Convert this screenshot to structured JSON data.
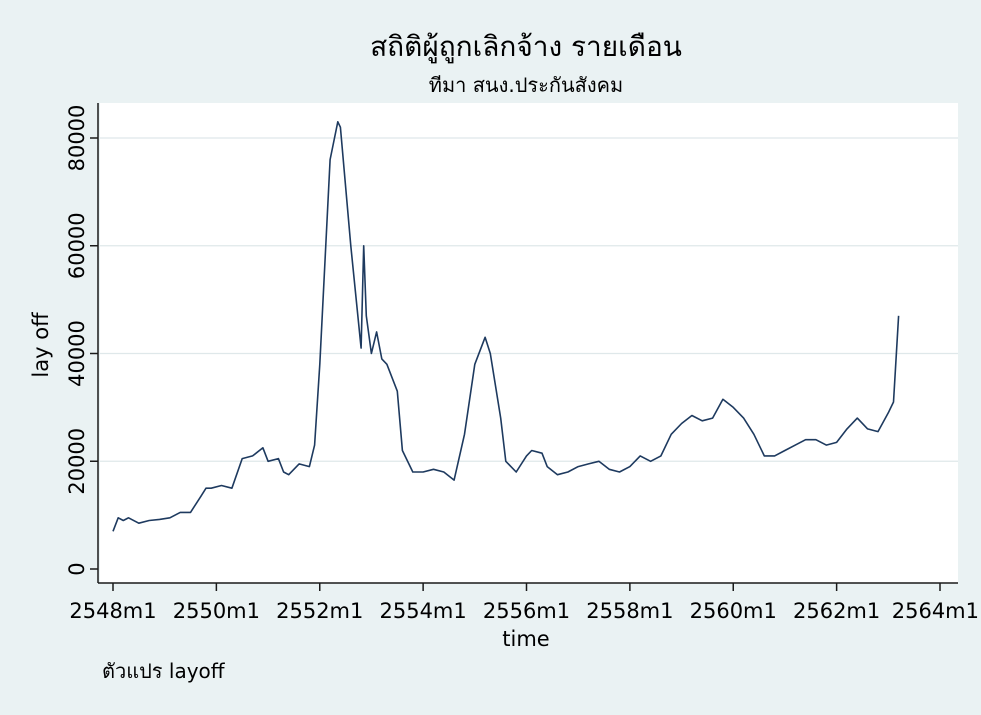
{
  "chart_data": {
    "type": "line",
    "title": "สถิติผู้ถูกเลิกจ้าง รายเดือน",
    "subtitle": "ทีมา สนง.ประกันสังคม",
    "xlabel": "time",
    "ylabel": "lay off",
    "note": "ตัวแปร layoff",
    "xlim": [
      2548.0,
      2564.0
    ],
    "ylim": [
      0,
      85000
    ],
    "x_ticks": [
      "2548m1",
      "2550m1",
      "2552m1",
      "2554m1",
      "2556m1",
      "2558m1",
      "2560m1",
      "2562m1",
      "2564m1"
    ],
    "x_tick_values": [
      2548,
      2550,
      2552,
      2554,
      2556,
      2558,
      2560,
      2562,
      2564
    ],
    "y_ticks": [
      "0",
      "20000",
      "40000",
      "60000",
      "80000"
    ],
    "y_tick_values": [
      0,
      20000,
      40000,
      60000,
      80000
    ],
    "grid": "horizontal",
    "line_color": "#1e3a5f",
    "series": [
      {
        "x": [
          2548.0,
          2548.1,
          2548.2,
          2548.3,
          2548.5,
          2548.7,
          2548.9,
          2549.1,
          2549.3,
          2549.5,
          2549.7,
          2549.8,
          2549.9,
          2550.1,
          2550.3,
          2550.5,
          2550.7,
          2550.9,
          2551.0,
          2551.2,
          2551.3,
          2551.4,
          2551.6,
          2551.8,
          2551.9,
          2552.0,
          2552.2,
          2552.35,
          2552.4,
          2552.6,
          2552.8,
          2552.85,
          2552.9,
          2553.0,
          2553.1,
          2553.2,
          2553.3,
          2553.5,
          2553.6,
          2553.8,
          2554.0,
          2554.2,
          2554.4,
          2554.6,
          2554.8,
          2555.0,
          2555.2,
          2555.3,
          2555.5,
          2555.6,
          2555.8,
          2556.0,
          2556.1,
          2556.3,
          2556.4,
          2556.6,
          2556.8,
          2557.0,
          2557.2,
          2557.4,
          2557.6,
          2557.8,
          2558.0,
          2558.2,
          2558.4,
          2558.6,
          2558.8,
          2559.0,
          2559.2,
          2559.4,
          2559.6,
          2559.8,
          2560.0,
          2560.2,
          2560.4,
          2560.6,
          2560.8,
          2561.0,
          2561.2,
          2561.4,
          2561.6,
          2561.8,
          2562.0,
          2562.2,
          2562.4,
          2562.6,
          2562.8,
          2563.0,
          2563.1,
          2563.2
        ],
        "values": [
          7000,
          9500,
          9000,
          9500,
          8500,
          9000,
          9200,
          9500,
          10500,
          10500,
          13500,
          15000,
          15000,
          15500,
          15000,
          20500,
          21000,
          22500,
          20000,
          20500,
          18000,
          17500,
          19500,
          19000,
          23000,
          38000,
          76000,
          83000,
          82000,
          60000,
          41000,
          60000,
          47000,
          40000,
          44000,
          39000,
          38000,
          33000,
          22000,
          18000,
          18000,
          18500,
          18000,
          16500,
          25000,
          38000,
          43000,
          40000,
          28000,
          20000,
          18000,
          21000,
          22000,
          21500,
          19000,
          17500,
          18000,
          19000,
          19500,
          20000,
          18500,
          18000,
          19000,
          21000,
          20000,
          21000,
          25000,
          27000,
          28500,
          27500,
          28000,
          31500,
          30000,
          28000,
          25000,
          21000,
          21000,
          22000,
          23000,
          24000,
          24000,
          23000,
          23500,
          26000,
          28000,
          26000,
          25500,
          29000,
          31000,
          47000
        ]
      }
    ]
  }
}
